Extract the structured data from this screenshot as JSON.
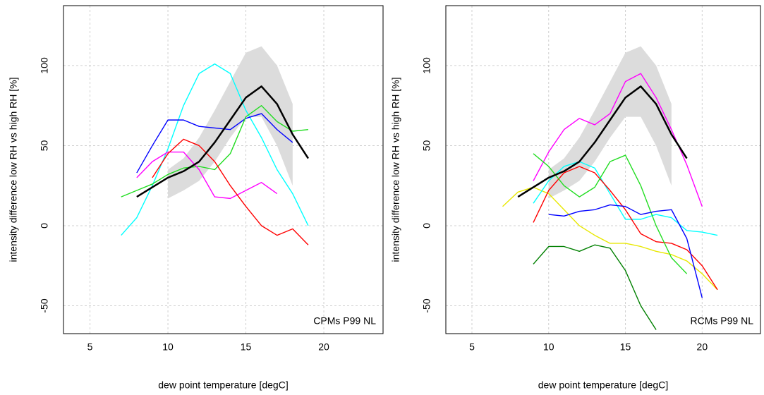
{
  "chart_data": [
    {
      "type": "line",
      "annotation": "CPMs P99 NL",
      "x_label": "dew point temperature [degC]",
      "y_label": "intensity difference low RH vs high RH [%]",
      "x": [
        6,
        7,
        8,
        9,
        10,
        11,
        12,
        13,
        14,
        15,
        16,
        17,
        18,
        19,
        20,
        21,
        22
      ],
      "xlim": [
        3.3,
        23.8
      ],
      "ylim": [
        -67.4,
        137.4
      ],
      "xticks": [
        5,
        10,
        15,
        20
      ],
      "yticks": [
        -50,
        0,
        50,
        100
      ],
      "grid": true,
      "band": {
        "color": "#dcdcdc",
        "lower": [
          null,
          null,
          null,
          null,
          17,
          22,
          28,
          40,
          55,
          68,
          68,
          50,
          25,
          null,
          null,
          null,
          null
        ],
        "upper": [
          null,
          null,
          null,
          null,
          35,
          42,
          55,
          72,
          90,
          108,
          112,
          100,
          76,
          null,
          null,
          null,
          null
        ]
      },
      "series": [
        {
          "color": "#00ffff",
          "values": [
            null,
            -6,
            5,
            25,
            48,
            75,
            95,
            101,
            95,
            72,
            55,
            35,
            20,
            0,
            null,
            null,
            null
          ]
        },
        {
          "color": "#0000ff",
          "values": [
            null,
            null,
            33,
            50,
            66,
            66,
            62,
            61,
            60,
            67,
            70,
            60,
            52,
            null,
            null,
            null,
            null
          ]
        },
        {
          "color": "#22dd22",
          "values": [
            null,
            18,
            22,
            26,
            32,
            36,
            37,
            35,
            45,
            68,
            75,
            65,
            59,
            60,
            null,
            null,
            null
          ]
        },
        {
          "color": "#ff00ff",
          "values": [
            null,
            null,
            30,
            40,
            46,
            46,
            35,
            18,
            17,
            22,
            27,
            20,
            null,
            null,
            null,
            null,
            null
          ]
        },
        {
          "color": "#ff0000",
          "values": [
            null,
            null,
            null,
            30,
            45,
            54,
            50,
            40,
            25,
            12,
            0,
            -6,
            -2,
            -12,
            null,
            null,
            null
          ]
        },
        {
          "color": "#000000",
          "line_width": 2.5,
          "values": [
            null,
            null,
            18,
            24,
            30,
            34,
            40,
            52,
            66,
            80,
            87,
            76,
            57,
            42,
            null,
            null,
            null
          ]
        }
      ]
    },
    {
      "type": "line",
      "annotation": "RCMs P99 NL",
      "x_label": "dew point temperature [degC]",
      "y_label": "intensity difference low RH vs high RH [%]",
      "x": [
        6,
        7,
        8,
        9,
        10,
        11,
        12,
        13,
        14,
        15,
        16,
        17,
        18,
        19,
        20,
        21,
        22
      ],
      "xlim": [
        3.3,
        23.8
      ],
      "ylim": [
        -67.4,
        137.4
      ],
      "xticks": [
        5,
        10,
        15,
        20
      ],
      "yticks": [
        -50,
        0,
        50,
        100
      ],
      "grid": true,
      "band": {
        "color": "#dcdcdc",
        "lower": [
          null,
          null,
          null,
          null,
          17,
          22,
          28,
          40,
          55,
          68,
          68,
          50,
          25,
          null,
          null,
          null,
          null
        ],
        "upper": [
          null,
          null,
          null,
          null,
          35,
          42,
          55,
          72,
          90,
          108,
          112,
          100,
          76,
          null,
          null,
          null,
          null
        ]
      },
      "series": [
        {
          "color": "#ff00ff",
          "values": [
            null,
            null,
            null,
            28,
            46,
            60,
            67,
            63,
            70,
            90,
            95,
            80,
            60,
            38,
            12,
            null,
            null
          ]
        },
        {
          "color": "#e8e800",
          "values": [
            null,
            12,
            21,
            24,
            20,
            10,
            0,
            -6,
            -11,
            -11,
            -13,
            -16,
            -18,
            -22,
            -30,
            -40,
            null
          ]
        },
        {
          "color": "#00ffff",
          "values": [
            null,
            null,
            null,
            14,
            28,
            37,
            40,
            36,
            20,
            4,
            4,
            7,
            5,
            -3,
            -4,
            -6,
            null
          ]
        },
        {
          "color": "#ff0000",
          "values": [
            null,
            null,
            null,
            2,
            22,
            33,
            37,
            33,
            22,
            10,
            -5,
            -10,
            -11,
            -15,
            -25,
            -40,
            null
          ]
        },
        {
          "color": "#22dd22",
          "values": [
            null,
            null,
            null,
            45,
            37,
            25,
            18,
            24,
            40,
            44,
            25,
            0,
            -20,
            -30,
            null,
            null,
            null
          ]
        },
        {
          "color": "#0000ff",
          "values": [
            null,
            null,
            null,
            null,
            7,
            6,
            9,
            10,
            13,
            12,
            7,
            9,
            10,
            -8,
            -45,
            null,
            null
          ]
        },
        {
          "color": "#008000",
          "values": [
            null,
            null,
            null,
            -24,
            -13,
            -13,
            -16,
            -12,
            -14,
            -28,
            -50,
            -65,
            null,
            null,
            null,
            null,
            null
          ]
        },
        {
          "color": "#000000",
          "line_width": 2.5,
          "values": [
            null,
            null,
            18,
            24,
            30,
            34,
            40,
            52,
            66,
            80,
            87,
            76,
            57,
            42,
            null,
            null,
            null
          ]
        }
      ]
    }
  ]
}
